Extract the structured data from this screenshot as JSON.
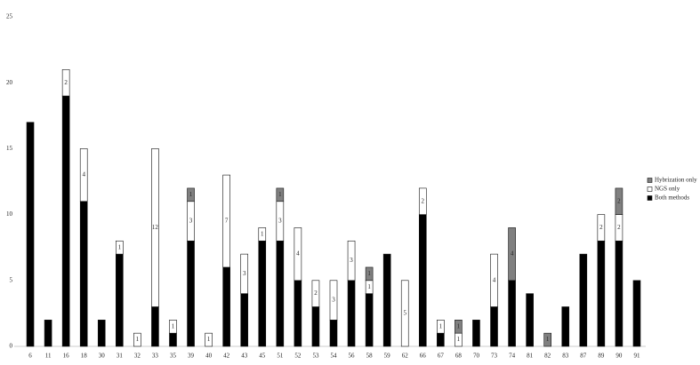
{
  "chart_data": {
    "type": "bar",
    "stacked": true,
    "categories": [
      "6",
      "11",
      "16",
      "18",
      "30",
      "31",
      "32",
      "33",
      "35",
      "39",
      "40",
      "42",
      "43",
      "45",
      "51",
      "52",
      "53",
      "54",
      "56",
      "58",
      "59",
      "62",
      "66",
      "67",
      "68",
      "70",
      "73",
      "74",
      "81",
      "82",
      "83",
      "87",
      "89",
      "90",
      "91"
    ],
    "series": [
      {
        "name": "Both methods",
        "color": "#000000",
        "values": [
          17,
          2,
          19,
          11,
          2,
          7,
          0,
          3,
          1,
          8,
          0,
          6,
          4,
          8,
          8,
          5,
          3,
          2,
          5,
          4,
          7,
          0,
          10,
          1,
          0,
          2,
          3,
          5,
          4,
          0,
          3,
          7,
          8,
          8,
          5
        ]
      },
      {
        "name": "NGS only",
        "color": "#ffffff",
        "values": [
          0,
          0,
          2,
          4,
          0,
          1,
          1,
          12,
          1,
          3,
          1,
          7,
          3,
          1,
          3,
          4,
          2,
          3,
          3,
          1,
          0,
          5,
          2,
          1,
          1,
          0,
          4,
          0,
          0,
          0,
          0,
          0,
          2,
          2,
          0
        ]
      },
      {
        "name": "Hybrization only",
        "color": "#808080",
        "values": [
          0,
          0,
          0,
          0,
          0,
          0,
          0,
          0,
          0,
          1,
          0,
          0,
          0,
          0,
          1,
          0,
          0,
          0,
          0,
          1,
          0,
          0,
          0,
          0,
          1,
          0,
          0,
          4,
          0,
          1,
          0,
          0,
          0,
          2,
          0
        ]
      }
    ],
    "ylim": [
      0,
      25
    ],
    "yticks": [
      0,
      5,
      10,
      15,
      20,
      25
    ],
    "grid": false,
    "legend": "right"
  }
}
